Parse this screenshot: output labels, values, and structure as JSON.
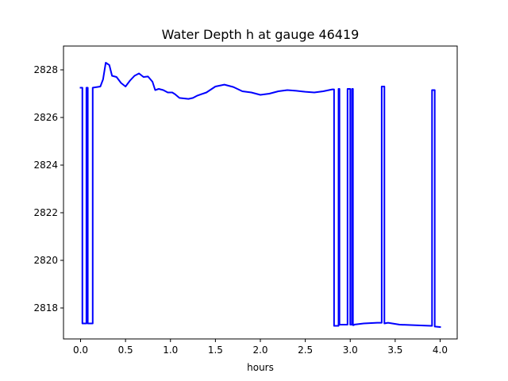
{
  "chart_data": {
    "type": "line",
    "title": "Water Depth h at gauge 46419",
    "xlabel": "hours",
    "ylabel": "",
    "xlim": [
      -0.19,
      4.19
    ],
    "ylim": [
      2816.7,
      2829.0
    ],
    "xticks": [
      0.0,
      0.5,
      1.0,
      1.5,
      2.0,
      2.5,
      3.0,
      3.5,
      4.0
    ],
    "xtick_labels": [
      "0.0",
      "0.5",
      "1.0",
      "1.5",
      "2.0",
      "2.5",
      "3.0",
      "3.5",
      "4.0"
    ],
    "yticks": [
      2818,
      2820,
      2822,
      2824,
      2826,
      2828
    ],
    "ytick_labels": [
      "2818",
      "2820",
      "2822",
      "2824",
      "2826",
      "2828"
    ],
    "grid": false,
    "line_color": "#0000ff",
    "series": [
      {
        "x": [
          0.0,
          0.02,
          0.02,
          0.065,
          0.065,
          0.08,
          0.08,
          0.135,
          0.135,
          0.22,
          0.25,
          0.28,
          0.3,
          0.32,
          0.35,
          0.4,
          0.45,
          0.5,
          0.55,
          0.6,
          0.65,
          0.7,
          0.75,
          0.8,
          0.83,
          0.87,
          0.92,
          0.97,
          1.02,
          1.05,
          1.1,
          1.15,
          1.2,
          1.25,
          1.3,
          1.4,
          1.5,
          1.6,
          1.7,
          1.8,
          1.9,
          2.0,
          2.1,
          2.2,
          2.3,
          2.4,
          2.5,
          2.6,
          2.7,
          2.8,
          2.82,
          2.82,
          2.87,
          2.87,
          2.88,
          2.88,
          2.97,
          2.97,
          3.0,
          3.0,
          3.02,
          3.02,
          3.03,
          3.03,
          3.04,
          3.04,
          3.15,
          3.3,
          3.35,
          3.35,
          3.38,
          3.38,
          3.42,
          3.55,
          3.7,
          3.9,
          3.91,
          3.91,
          3.94,
          3.94,
          4.0
        ],
        "y": [
          2827.25,
          2827.25,
          2817.35,
          2817.35,
          2827.25,
          2827.25,
          2817.35,
          2817.35,
          2827.25,
          2827.3,
          2827.6,
          2828.3,
          2828.25,
          2828.2,
          2827.75,
          2827.7,
          2827.45,
          2827.3,
          2827.55,
          2827.75,
          2827.85,
          2827.7,
          2827.72,
          2827.5,
          2827.15,
          2827.2,
          2827.15,
          2827.05,
          2827.05,
          2826.98,
          2826.82,
          2826.8,
          2826.78,
          2826.82,
          2826.92,
          2827.05,
          2827.3,
          2827.38,
          2827.28,
          2827.1,
          2827.05,
          2826.95,
          2827.0,
          2827.1,
          2827.15,
          2827.12,
          2827.08,
          2827.05,
          2827.1,
          2827.18,
          2827.18,
          2817.25,
          2817.25,
          2827.2,
          2827.2,
          2817.3,
          2817.3,
          2827.2,
          2827.2,
          2817.3,
          2817.3,
          2827.2,
          2827.2,
          2817.28,
          2817.28,
          2817.3,
          2817.35,
          2817.38,
          2817.38,
          2827.3,
          2827.3,
          2817.35,
          2817.38,
          2817.3,
          2817.28,
          2817.25,
          2817.25,
          2827.15,
          2827.15,
          2817.22,
          2817.2
        ]
      }
    ]
  }
}
